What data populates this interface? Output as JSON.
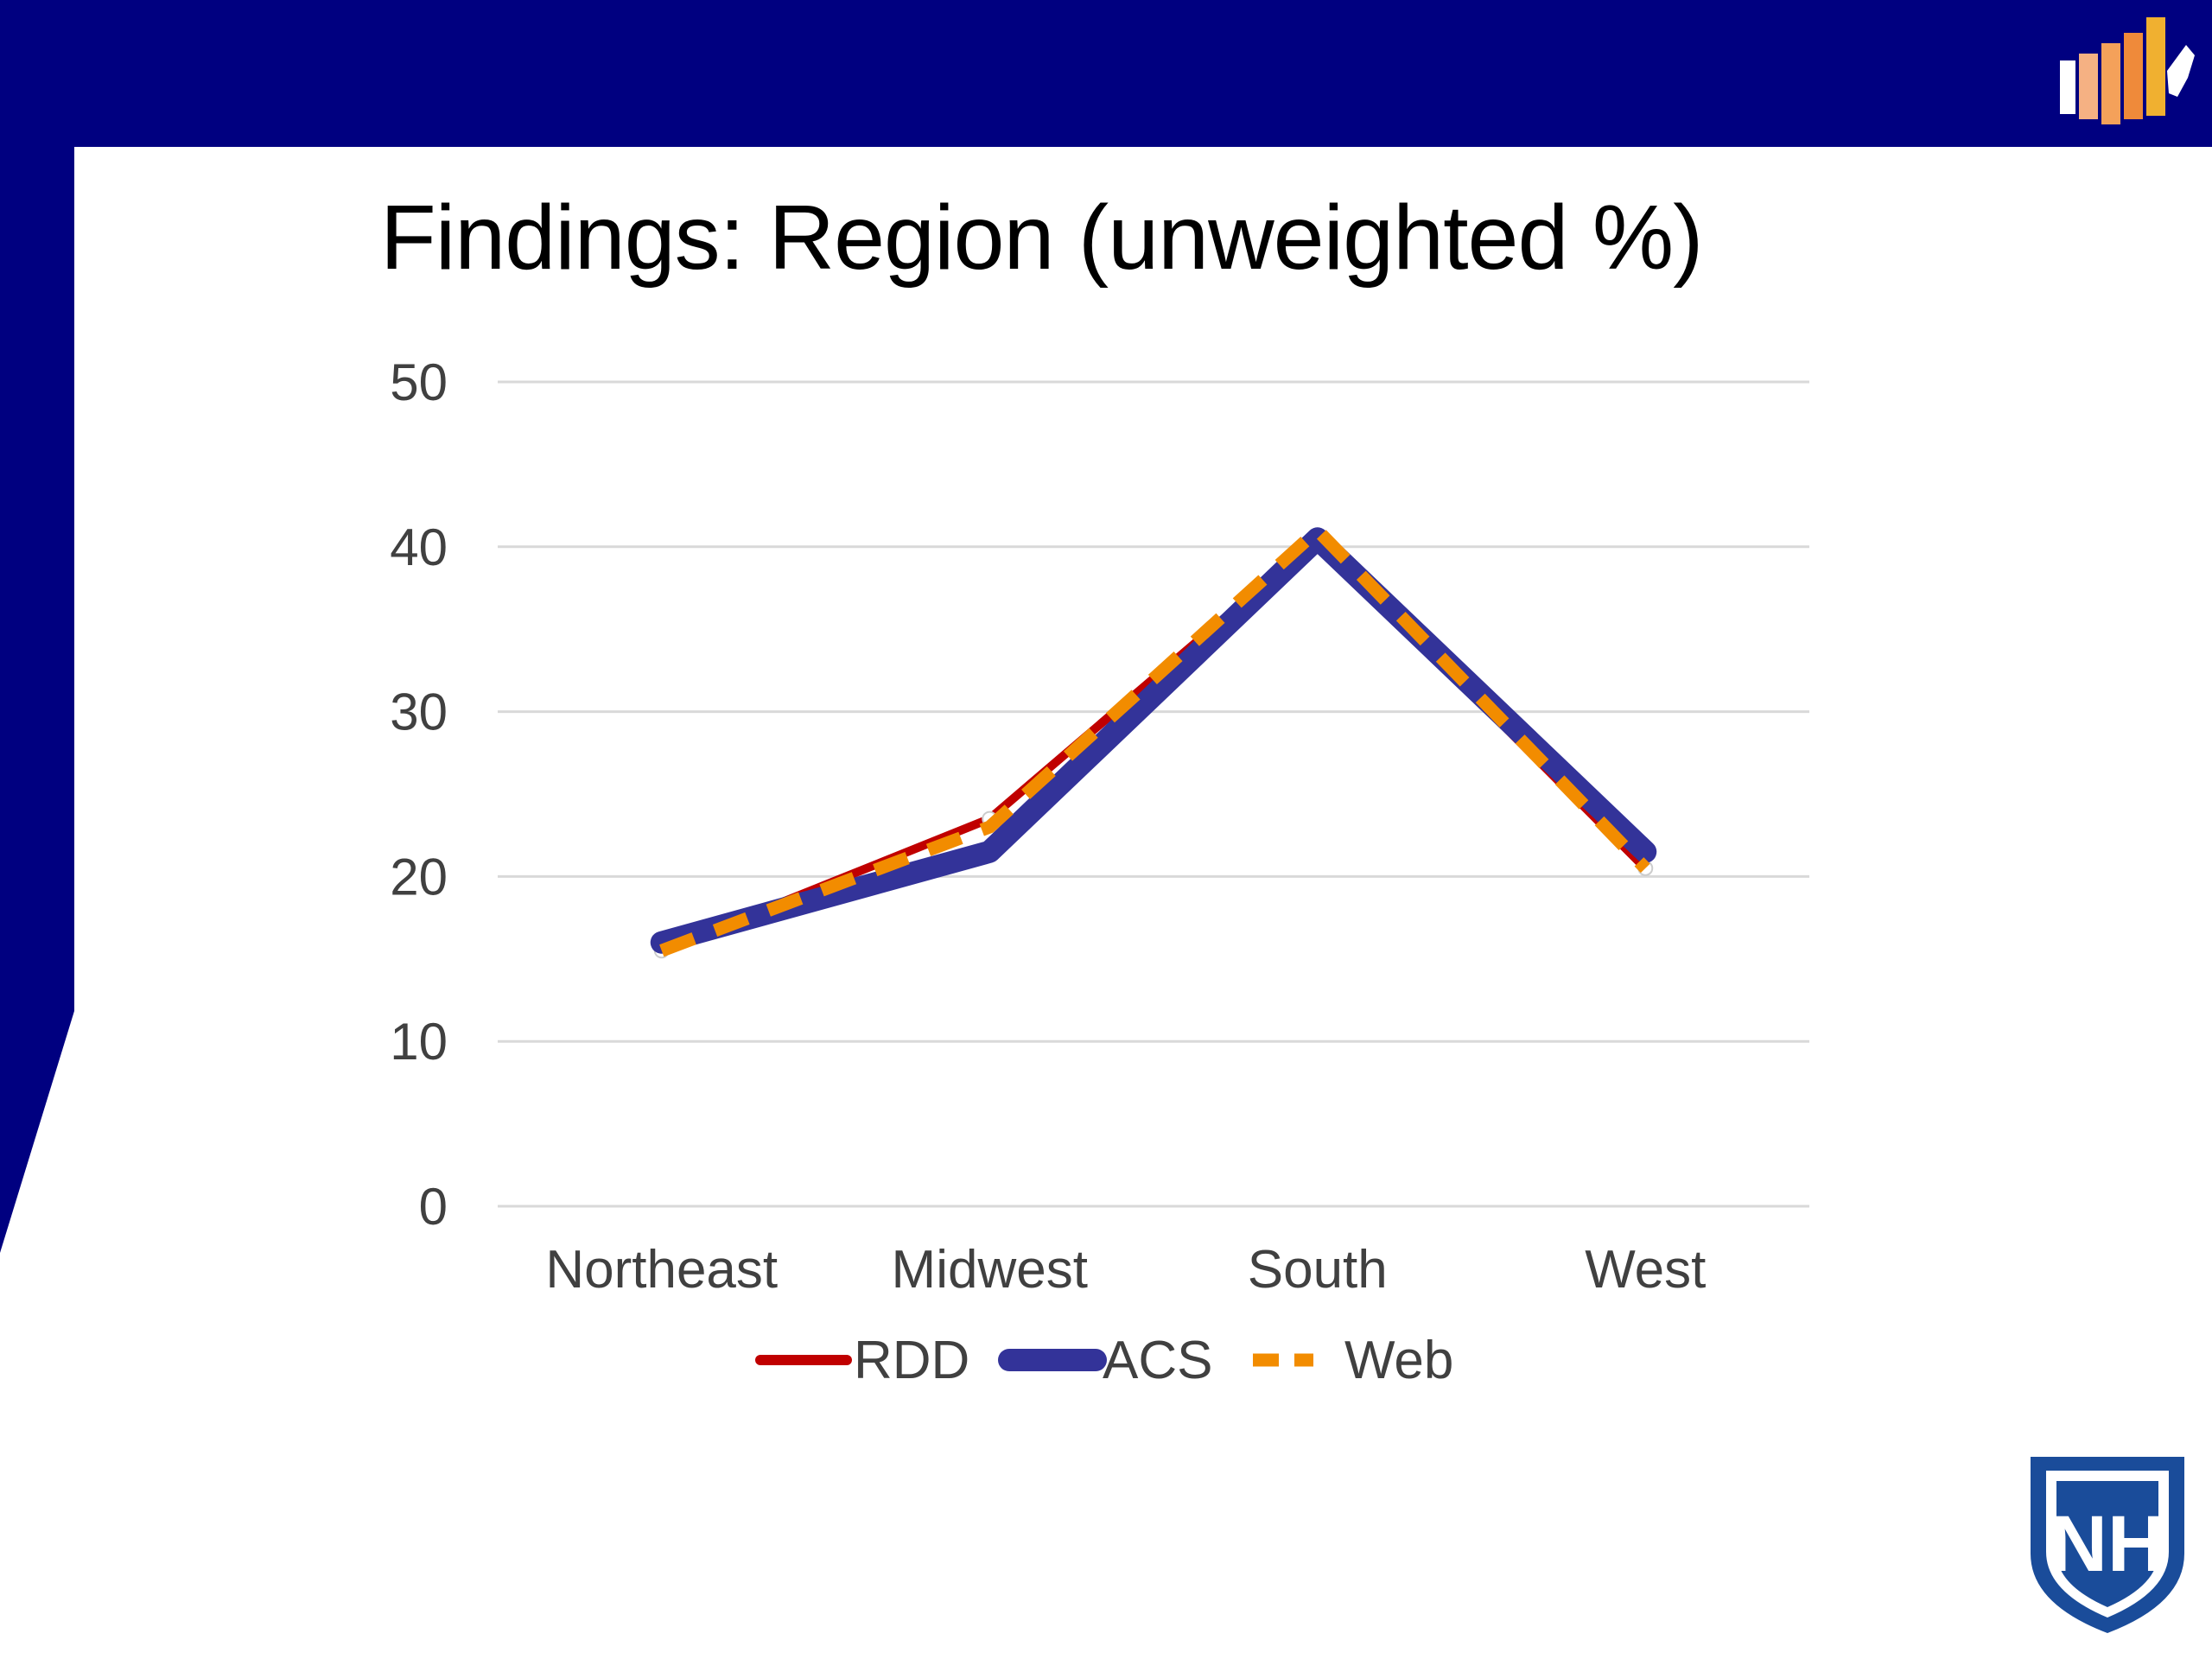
{
  "slide": {
    "title": "Findings: Region (unweighted %)",
    "colors": {
      "banner": "#000080",
      "background": "#ffffff"
    },
    "logos": {
      "top_right": "bar-chart-us-map-logo",
      "bottom_right": "nh-shield-logo",
      "bottom_right_text": "NH"
    }
  },
  "chart_data": {
    "type": "line",
    "categories": [
      "Northeast",
      "Midwest",
      "South",
      "West"
    ],
    "series": [
      {
        "name": "RDD",
        "values": [
          15.5,
          23.5,
          40.5,
          20.5
        ],
        "color": "#c00000",
        "style": "solid-with-markers"
      },
      {
        "name": "ACS",
        "values": [
          16,
          21.5,
          40.5,
          21.5
        ],
        "color": "#333399",
        "style": "solid-thick"
      },
      {
        "name": "Web",
        "values": [
          15.5,
          23,
          41,
          20.5
        ],
        "color": "#f28c00",
        "style": "dashed"
      }
    ],
    "yticks": [
      0,
      10,
      20,
      30,
      40,
      50
    ],
    "ylim": [
      0,
      50
    ],
    "grid": true,
    "legend": "bottom"
  }
}
